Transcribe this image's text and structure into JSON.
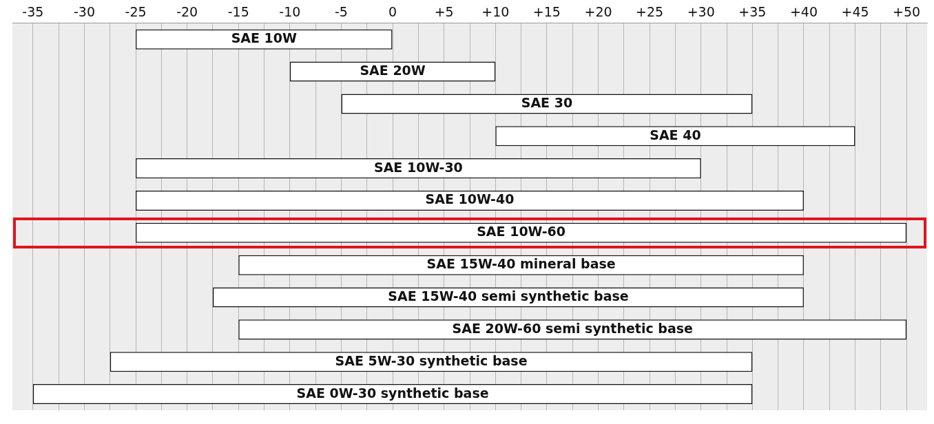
{
  "chart_data": {
    "type": "bar",
    "orientation": "horizontal",
    "categories": [
      "SAE 10W",
      "SAE 20W",
      "SAE 30",
      "SAE 40",
      "SAE 10W-30",
      "SAE 10W-40",
      "SAE 10W-60",
      "SAE 15W-40 mineral base",
      "SAE 15W-40 semi synthetic base",
      "SAE 20W-60 semi synthetic base",
      "SAE 5W-30 synthetic base",
      "SAE 0W-30 synthetic base"
    ],
    "base": [
      -25,
      -10,
      -5,
      10,
      -25,
      -25,
      -25,
      -15,
      -17.5,
      -15,
      -27.5,
      -35
    ],
    "values": [
      25,
      20,
      40,
      35,
      55,
      65,
      75,
      55,
      57.5,
      65,
      62.5,
      70
    ],
    "color": "#ffffff",
    "xlim": [
      -37,
      52
    ],
    "xticks": [
      -35,
      {
        "value": -32.5,
        "label": null
      },
      -30,
      {
        "value": -27.5,
        "label": null
      },
      -25,
      {
        "value": -22.5,
        "label": null
      },
      -20,
      {
        "value": -17.5,
        "label": null
      },
      -15,
      {
        "value": -12.5,
        "label": null
      },
      -10,
      {
        "value": -7.5,
        "label": null
      },
      -5,
      {
        "value": -2.5,
        "label": null
      },
      0,
      {
        "value": 2.5,
        "label": null
      },
      {
        "value": 5,
        "label": "+5"
      },
      {
        "value": 7.5,
        "label": null
      },
      {
        "value": 10,
        "label": "+10"
      },
      {
        "value": 12.5,
        "label": null
      },
      {
        "value": 15,
        "label": "+15"
      },
      {
        "value": 17.5,
        "label": null
      },
      {
        "value": 20,
        "label": "+20"
      },
      {
        "value": 22.5,
        "label": null
      },
      {
        "value": 25,
        "label": "+25"
      },
      {
        "value": 27.5,
        "label": null
      },
      {
        "value": 30,
        "label": "+30"
      },
      {
        "value": 32.5,
        "label": null
      },
      {
        "value": 35,
        "label": "+35"
      },
      {
        "value": 37.5,
        "label": null
      },
      {
        "value": 40,
        "label": "+40"
      },
      {
        "value": 42.5,
        "label": null
      },
      {
        "value": 45,
        "label": "+45"
      },
      {
        "value": 47.5,
        "label": null
      },
      {
        "value": 50,
        "label": "+50"
      }
    ],
    "grid": "x",
    "legend": false
  }
}
